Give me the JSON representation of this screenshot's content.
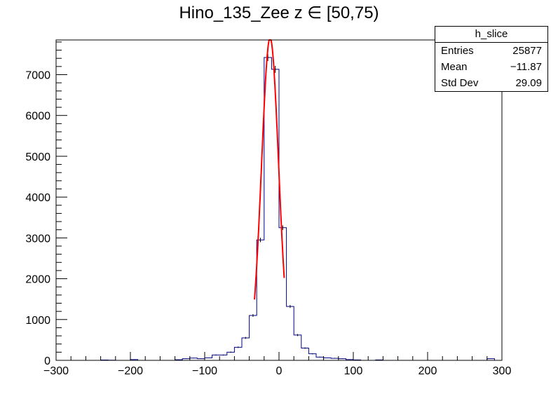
{
  "title": "Hino_135_Zee z  ∈ [50,75)",
  "stats": {
    "name": "h_slice",
    "rows": [
      {
        "label": "Entries",
        "value": "25877"
      },
      {
        "label": "Mean",
        "value": "−11.87"
      },
      {
        "label": "Std Dev",
        "value": "29.09"
      }
    ]
  },
  "colors": {
    "histogram": "#00008b",
    "fit": "#ff0000",
    "axis": "#000000"
  },
  "chart_data": {
    "type": "histogram",
    "title": "Hino_135_Zee z  ∈ [50,75)",
    "xlim": [
      -300,
      300
    ],
    "ylim": [
      0,
      7850
    ],
    "x_ticks": [
      -300,
      -200,
      -100,
      0,
      100,
      200,
      300
    ],
    "y_ticks": [
      0,
      1000,
      2000,
      3000,
      4000,
      5000,
      6000,
      7000
    ],
    "bin_width": 10,
    "bins": [
      {
        "x": -240,
        "y": 8
      },
      {
        "x": -230,
        "y": 5
      },
      {
        "x": -200,
        "y": 20
      },
      {
        "x": -140,
        "y": 15
      },
      {
        "x": -130,
        "y": 40
      },
      {
        "x": -120,
        "y": 55
      },
      {
        "x": -110,
        "y": 40
      },
      {
        "x": -100,
        "y": 60
      },
      {
        "x": -90,
        "y": 130
      },
      {
        "x": -80,
        "y": 130
      },
      {
        "x": -70,
        "y": 200
      },
      {
        "x": -60,
        "y": 320
      },
      {
        "x": -50,
        "y": 550
      },
      {
        "x": -40,
        "y": 1100
      },
      {
        "x": -30,
        "y": 2950
      },
      {
        "x": -20,
        "y": 7420
      },
      {
        "x": -10,
        "y": 7130
      },
      {
        "x": 0,
        "y": 3250
      },
      {
        "x": 10,
        "y": 1320
      },
      {
        "x": 20,
        "y": 620
      },
      {
        "x": 30,
        "y": 300
      },
      {
        "x": 40,
        "y": 160
      },
      {
        "x": 50,
        "y": 80
      },
      {
        "x": 60,
        "y": 60
      },
      {
        "x": 70,
        "y": 50
      },
      {
        "x": 80,
        "y": 40
      },
      {
        "x": 90,
        "y": 20
      },
      {
        "x": 100,
        "y": 10
      },
      {
        "x": 130,
        "y": 10
      },
      {
        "x": 280,
        "y": 40
      }
    ],
    "fit": {
      "type": "gaussian",
      "amplitude": 7900,
      "mean": -12,
      "sigma": 11.5,
      "range": [
        -33,
        7
      ]
    }
  }
}
